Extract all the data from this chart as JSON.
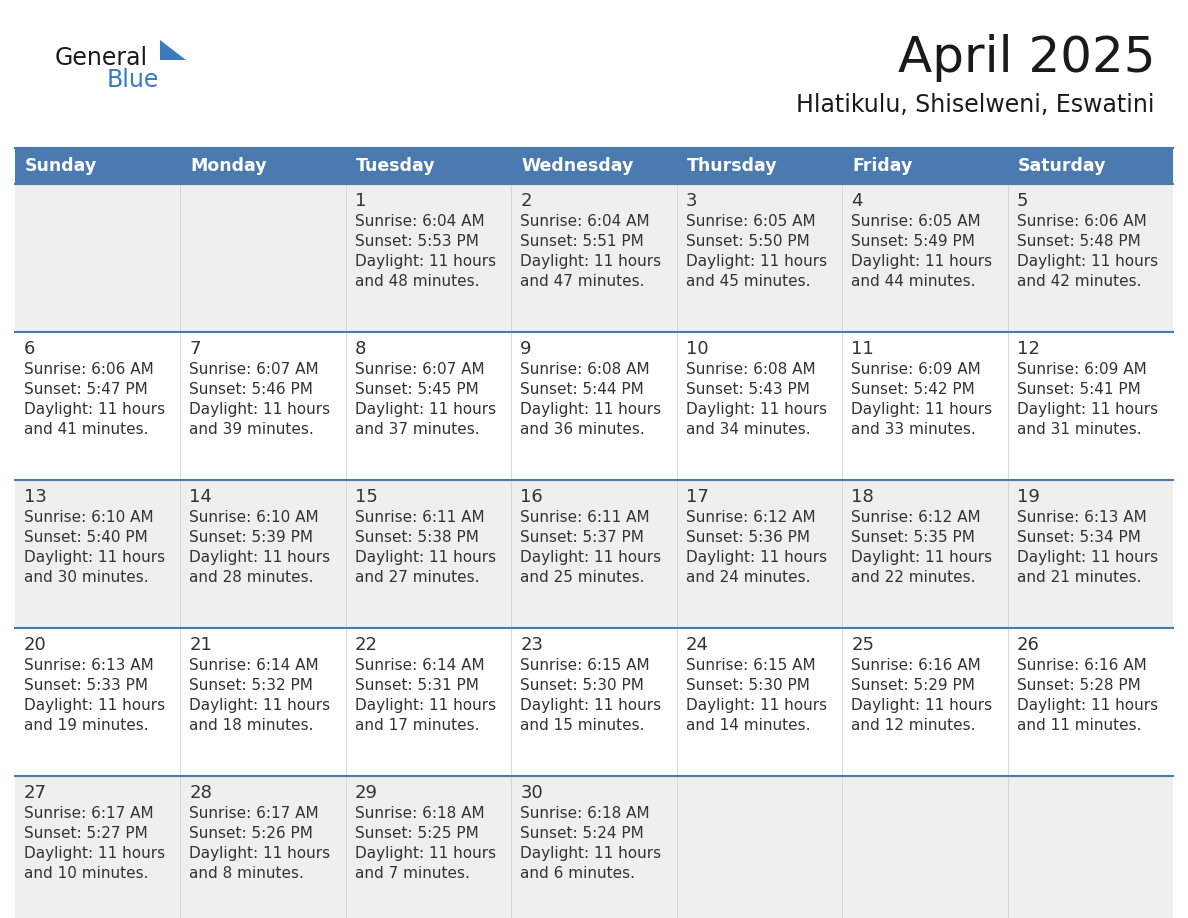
{
  "title": "April 2025",
  "subtitle": "Hlatikulu, Shiselweni, Eswatini",
  "days_of_week": [
    "Sunday",
    "Monday",
    "Tuesday",
    "Wednesday",
    "Thursday",
    "Friday",
    "Saturday"
  ],
  "header_bg": "#4a7aaf",
  "header_text_color": "#ffffff",
  "text_color": "#333333",
  "line_color": "#4a7aaf",
  "logo_general_color": "#1a1a1a",
  "logo_blue_color": "#3a7abf",
  "calendar_data": [
    [
      null,
      null,
      {
        "day": 1,
        "sunrise": "6:04 AM",
        "sunset": "5:53 PM",
        "daylight_h": "11 hours",
        "daylight_m": "and 48 minutes."
      },
      {
        "day": 2,
        "sunrise": "6:04 AM",
        "sunset": "5:51 PM",
        "daylight_h": "11 hours",
        "daylight_m": "and 47 minutes."
      },
      {
        "day": 3,
        "sunrise": "6:05 AM",
        "sunset": "5:50 PM",
        "daylight_h": "11 hours",
        "daylight_m": "and 45 minutes."
      },
      {
        "day": 4,
        "sunrise": "6:05 AM",
        "sunset": "5:49 PM",
        "daylight_h": "11 hours",
        "daylight_m": "and 44 minutes."
      },
      {
        "day": 5,
        "sunrise": "6:06 AM",
        "sunset": "5:48 PM",
        "daylight_h": "11 hours",
        "daylight_m": "and 42 minutes."
      }
    ],
    [
      {
        "day": 6,
        "sunrise": "6:06 AM",
        "sunset": "5:47 PM",
        "daylight_h": "11 hours",
        "daylight_m": "and 41 minutes."
      },
      {
        "day": 7,
        "sunrise": "6:07 AM",
        "sunset": "5:46 PM",
        "daylight_h": "11 hours",
        "daylight_m": "and 39 minutes."
      },
      {
        "day": 8,
        "sunrise": "6:07 AM",
        "sunset": "5:45 PM",
        "daylight_h": "11 hours",
        "daylight_m": "and 37 minutes."
      },
      {
        "day": 9,
        "sunrise": "6:08 AM",
        "sunset": "5:44 PM",
        "daylight_h": "11 hours",
        "daylight_m": "and 36 minutes."
      },
      {
        "day": 10,
        "sunrise": "6:08 AM",
        "sunset": "5:43 PM",
        "daylight_h": "11 hours",
        "daylight_m": "and 34 minutes."
      },
      {
        "day": 11,
        "sunrise": "6:09 AM",
        "sunset": "5:42 PM",
        "daylight_h": "11 hours",
        "daylight_m": "and 33 minutes."
      },
      {
        "day": 12,
        "sunrise": "6:09 AM",
        "sunset": "5:41 PM",
        "daylight_h": "11 hours",
        "daylight_m": "and 31 minutes."
      }
    ],
    [
      {
        "day": 13,
        "sunrise": "6:10 AM",
        "sunset": "5:40 PM",
        "daylight_h": "11 hours",
        "daylight_m": "and 30 minutes."
      },
      {
        "day": 14,
        "sunrise": "6:10 AM",
        "sunset": "5:39 PM",
        "daylight_h": "11 hours",
        "daylight_m": "and 28 minutes."
      },
      {
        "day": 15,
        "sunrise": "6:11 AM",
        "sunset": "5:38 PM",
        "daylight_h": "11 hours",
        "daylight_m": "and 27 minutes."
      },
      {
        "day": 16,
        "sunrise": "6:11 AM",
        "sunset": "5:37 PM",
        "daylight_h": "11 hours",
        "daylight_m": "and 25 minutes."
      },
      {
        "day": 17,
        "sunrise": "6:12 AM",
        "sunset": "5:36 PM",
        "daylight_h": "11 hours",
        "daylight_m": "and 24 minutes."
      },
      {
        "day": 18,
        "sunrise": "6:12 AM",
        "sunset": "5:35 PM",
        "daylight_h": "11 hours",
        "daylight_m": "and 22 minutes."
      },
      {
        "day": 19,
        "sunrise": "6:13 AM",
        "sunset": "5:34 PM",
        "daylight_h": "11 hours",
        "daylight_m": "and 21 minutes."
      }
    ],
    [
      {
        "day": 20,
        "sunrise": "6:13 AM",
        "sunset": "5:33 PM",
        "daylight_h": "11 hours",
        "daylight_m": "and 19 minutes."
      },
      {
        "day": 21,
        "sunrise": "6:14 AM",
        "sunset": "5:32 PM",
        "daylight_h": "11 hours",
        "daylight_m": "and 18 minutes."
      },
      {
        "day": 22,
        "sunrise": "6:14 AM",
        "sunset": "5:31 PM",
        "daylight_h": "11 hours",
        "daylight_m": "and 17 minutes."
      },
      {
        "day": 23,
        "sunrise": "6:15 AM",
        "sunset": "5:30 PM",
        "daylight_h": "11 hours",
        "daylight_m": "and 15 minutes."
      },
      {
        "day": 24,
        "sunrise": "6:15 AM",
        "sunset": "5:30 PM",
        "daylight_h": "11 hours",
        "daylight_m": "and 14 minutes."
      },
      {
        "day": 25,
        "sunrise": "6:16 AM",
        "sunset": "5:29 PM",
        "daylight_h": "11 hours",
        "daylight_m": "and 12 minutes."
      },
      {
        "day": 26,
        "sunrise": "6:16 AM",
        "sunset": "5:28 PM",
        "daylight_h": "11 hours",
        "daylight_m": "and 11 minutes."
      }
    ],
    [
      {
        "day": 27,
        "sunrise": "6:17 AM",
        "sunset": "5:27 PM",
        "daylight_h": "11 hours",
        "daylight_m": "and 10 minutes."
      },
      {
        "day": 28,
        "sunrise": "6:17 AM",
        "sunset": "5:26 PM",
        "daylight_h": "11 hours",
        "daylight_m": "and 8 minutes."
      },
      {
        "day": 29,
        "sunrise": "6:18 AM",
        "sunset": "5:25 PM",
        "daylight_h": "11 hours",
        "daylight_m": "and 7 minutes."
      },
      {
        "day": 30,
        "sunrise": "6:18 AM",
        "sunset": "5:24 PM",
        "daylight_h": "11 hours",
        "daylight_m": "and 6 minutes."
      },
      null,
      null,
      null
    ]
  ]
}
